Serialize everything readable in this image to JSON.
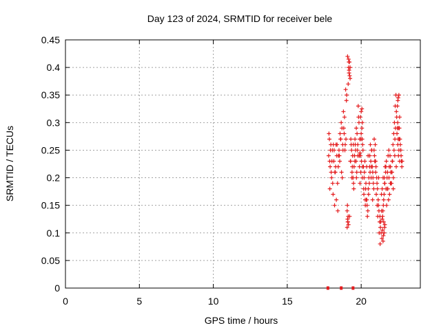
{
  "chart_data": {
    "type": "scatter",
    "title": "Day 123 of 2024, SRMTID for receiver bele",
    "xlabel": "GPS time / hours",
    "ylabel": "SRMTID / TECUs",
    "xlim": [
      0,
      24
    ],
    "ylim": [
      0,
      0.45
    ],
    "xticks": [
      0,
      5,
      10,
      15,
      20
    ],
    "xtick_labels": [
      "0",
      "5",
      "10",
      "15",
      "20"
    ],
    "yticks": [
      0,
      0.05,
      0.1,
      0.15,
      0.2,
      0.25,
      0.3,
      0.35,
      0.4,
      0.45
    ],
    "ytick_labels": [
      "0",
      "0.05",
      "0.1",
      "0.15",
      "0.2",
      "0.25",
      "0.3",
      "0.35",
      "0.4",
      "0.45"
    ],
    "grid": true,
    "marker_color": "#e41a1c",
    "series": [
      {
        "name": "SRMTID",
        "marker": "plus",
        "x": [
          17.8,
          17.85,
          17.9,
          17.95,
          18.0,
          18.05,
          18.1,
          18.15,
          18.2,
          18.25,
          18.3,
          18.35,
          18.4,
          18.45,
          18.5,
          18.55,
          18.6,
          18.65,
          18.7,
          18.75,
          18.8,
          18.85,
          18.9,
          18.95,
          19.0,
          19.05,
          19.1,
          19.15,
          19.2,
          19.25,
          19.3,
          19.35,
          19.4,
          19.45,
          19.5,
          19.55,
          19.6,
          19.65,
          19.7,
          19.75,
          19.8,
          19.85,
          19.9,
          19.95,
          20.0,
          20.05,
          20.1,
          20.15,
          20.2,
          20.25,
          20.3,
          20.35,
          20.4,
          20.45,
          20.5,
          20.55,
          20.6,
          20.65,
          20.7,
          20.75,
          20.8,
          20.85,
          20.9,
          20.95,
          21.0,
          21.05,
          21.1,
          21.15,
          21.2,
          21.25,
          21.3,
          21.35,
          21.4,
          21.45,
          21.5,
          21.55,
          21.6,
          21.65,
          21.7,
          21.75,
          21.8,
          21.85,
          21.9,
          21.95,
          22.0,
          22.05,
          22.1,
          22.15,
          22.2,
          22.25,
          22.3,
          22.35,
          22.4,
          22.45,
          22.5,
          22.55,
          22.6,
          22.65,
          22.7,
          22.75,
          17.82,
          17.88,
          17.92,
          18.02,
          18.12,
          18.22,
          18.32,
          18.42,
          18.52,
          18.62,
          18.72,
          18.82,
          18.92,
          19.02,
          19.08,
          19.12,
          19.18,
          19.22,
          19.28,
          19.32,
          19.38,
          19.42,
          19.48,
          19.52,
          19.58,
          19.62,
          19.68,
          19.72,
          19.78,
          19.82,
          19.88,
          19.92,
          19.98,
          20.02,
          20.08,
          20.12,
          20.18,
          20.22,
          20.28,
          20.32,
          20.38,
          20.42,
          20.48,
          20.52,
          20.58,
          20.62,
          20.68,
          20.72,
          20.78,
          20.82,
          20.88,
          20.92,
          20.98,
          21.02,
          21.08,
          21.12,
          21.18,
          21.22,
          21.28,
          21.32,
          21.38,
          21.42,
          21.48,
          21.52,
          21.58,
          21.62,
          21.68,
          21.72,
          21.78,
          21.82,
          21.88,
          21.92,
          21.98,
          22.02,
          22.08,
          22.12,
          22.18,
          22.22,
          22.28,
          22.32,
          22.38,
          22.42,
          22.48,
          22.52,
          22.58,
          22.62,
          22.68,
          22.72,
          17.87,
          17.97,
          18.07,
          18.17,
          18.27,
          18.37,
          18.47,
          18.57,
          18.67,
          18.77,
          18.87,
          18.97,
          19.07,
          19.17,
          19.27,
          19.37,
          19.47,
          19.57,
          19.67,
          19.77,
          19.87,
          19.97,
          20.07,
          20.17,
          20.27,
          20.37,
          20.47,
          20.57,
          20.67,
          20.77,
          20.87,
          20.97,
          21.07,
          21.17,
          21.27,
          21.37,
          21.47,
          21.57,
          21.67,
          21.77,
          21.87,
          21.97,
          22.07,
          22.17,
          22.27,
          22.37,
          22.47,
          22.57,
          22.67,
          22.77,
          19.15,
          19.2,
          19.25,
          19.18,
          19.22,
          19.1,
          19.05,
          19.12,
          19.08,
          19.14,
          21.5,
          21.55,
          21.45,
          21.6,
          21.52,
          21.48,
          21.58,
          21.42,
          22.5,
          22.55,
          22.45,
          22.6,
          22.52,
          22.48,
          20.0,
          20.05,
          19.95,
          20.1,
          20.08,
          19.92
        ],
        "y": [
          0.24,
          0.27,
          0.22,
          0.26,
          0.2,
          0.25,
          0.17,
          0.23,
          0.15,
          0.21,
          0.26,
          0.24,
          0.19,
          0.22,
          0.25,
          0.23,
          0.27,
          0.3,
          0.29,
          0.26,
          0.32,
          0.28,
          0.25,
          0.36,
          0.34,
          0.14,
          0.12,
          0.4,
          0.41,
          0.38,
          0.27,
          0.25,
          0.22,
          0.2,
          0.18,
          0.24,
          0.26,
          0.23,
          0.21,
          0.25,
          0.33,
          0.3,
          0.27,
          0.24,
          0.32,
          0.29,
          0.26,
          0.22,
          0.2,
          0.23,
          0.18,
          0.16,
          0.15,
          0.14,
          0.17,
          0.19,
          0.21,
          0.23,
          0.25,
          0.22,
          0.2,
          0.18,
          0.24,
          0.26,
          0.22,
          0.2,
          0.18,
          0.16,
          0.14,
          0.12,
          0.11,
          0.1,
          0.09,
          0.13,
          0.15,
          0.17,
          0.19,
          0.21,
          0.23,
          0.2,
          0.18,
          0.16,
          0.22,
          0.24,
          0.21,
          0.19,
          0.23,
          0.26,
          0.28,
          0.3,
          0.33,
          0.35,
          0.31,
          0.29,
          0.27,
          0.25,
          0.23,
          0.26,
          0.24,
          0.22,
          0.28,
          0.18,
          0.25,
          0.23,
          0.26,
          0.21,
          0.16,
          0.14,
          0.24,
          0.27,
          0.2,
          0.29,
          0.26,
          0.35,
          0.42,
          0.37,
          0.39,
          0.13,
          0.23,
          0.26,
          0.21,
          0.24,
          0.19,
          0.22,
          0.27,
          0.25,
          0.2,
          0.28,
          0.24,
          0.31,
          0.22,
          0.19,
          0.27,
          0.23,
          0.3,
          0.25,
          0.17,
          0.21,
          0.15,
          0.19,
          0.16,
          0.13,
          0.18,
          0.2,
          0.24,
          0.26,
          0.22,
          0.25,
          0.21,
          0.19,
          0.27,
          0.23,
          0.21,
          0.17,
          0.15,
          0.13,
          0.2,
          0.1,
          0.08,
          0.12,
          0.14,
          0.18,
          0.2,
          0.16,
          0.19,
          0.22,
          0.18,
          0.15,
          0.21,
          0.24,
          0.2,
          0.17,
          0.22,
          0.19,
          0.21,
          0.23,
          0.2,
          0.25,
          0.27,
          0.29,
          0.32,
          0.28,
          0.26,
          0.24,
          0.29,
          0.27,
          0.25,
          0.23,
          0.23,
          0.21,
          0.19,
          0.25,
          0.22,
          0.26,
          0.24,
          0.28,
          0.21,
          0.25,
          0.31,
          0.27,
          0.15,
          0.41,
          0.23,
          0.2,
          0.26,
          0.23,
          0.29,
          0.26,
          0.24,
          0.21,
          0.27,
          0.18,
          0.16,
          0.22,
          0.24,
          0.22,
          0.2,
          0.16,
          0.25,
          0.23,
          0.19,
          0.15,
          0.13,
          0.17,
          0.14,
          0.2,
          0.22,
          0.18,
          0.25,
          0.19,
          0.21,
          0.18,
          0.24,
          0.22,
          0.3,
          0.27,
          0.25,
          0.23,
          0.415,
          0.41,
          0.4,
          0.395,
          0.385,
          0.12,
          0.11,
          0.13,
          0.125,
          0.115,
          0.095,
          0.1,
          0.105,
          0.115,
          0.12,
          0.085,
          0.11,
          0.125,
          0.345,
          0.35,
          0.33,
          0.31,
          0.29,
          0.34,
          0.28,
          0.325,
          0.31,
          0.22,
          0.2,
          0.245
        ],
        "zero_markers": [
          17.75,
          18.65,
          19.45
        ]
      }
    ]
  }
}
